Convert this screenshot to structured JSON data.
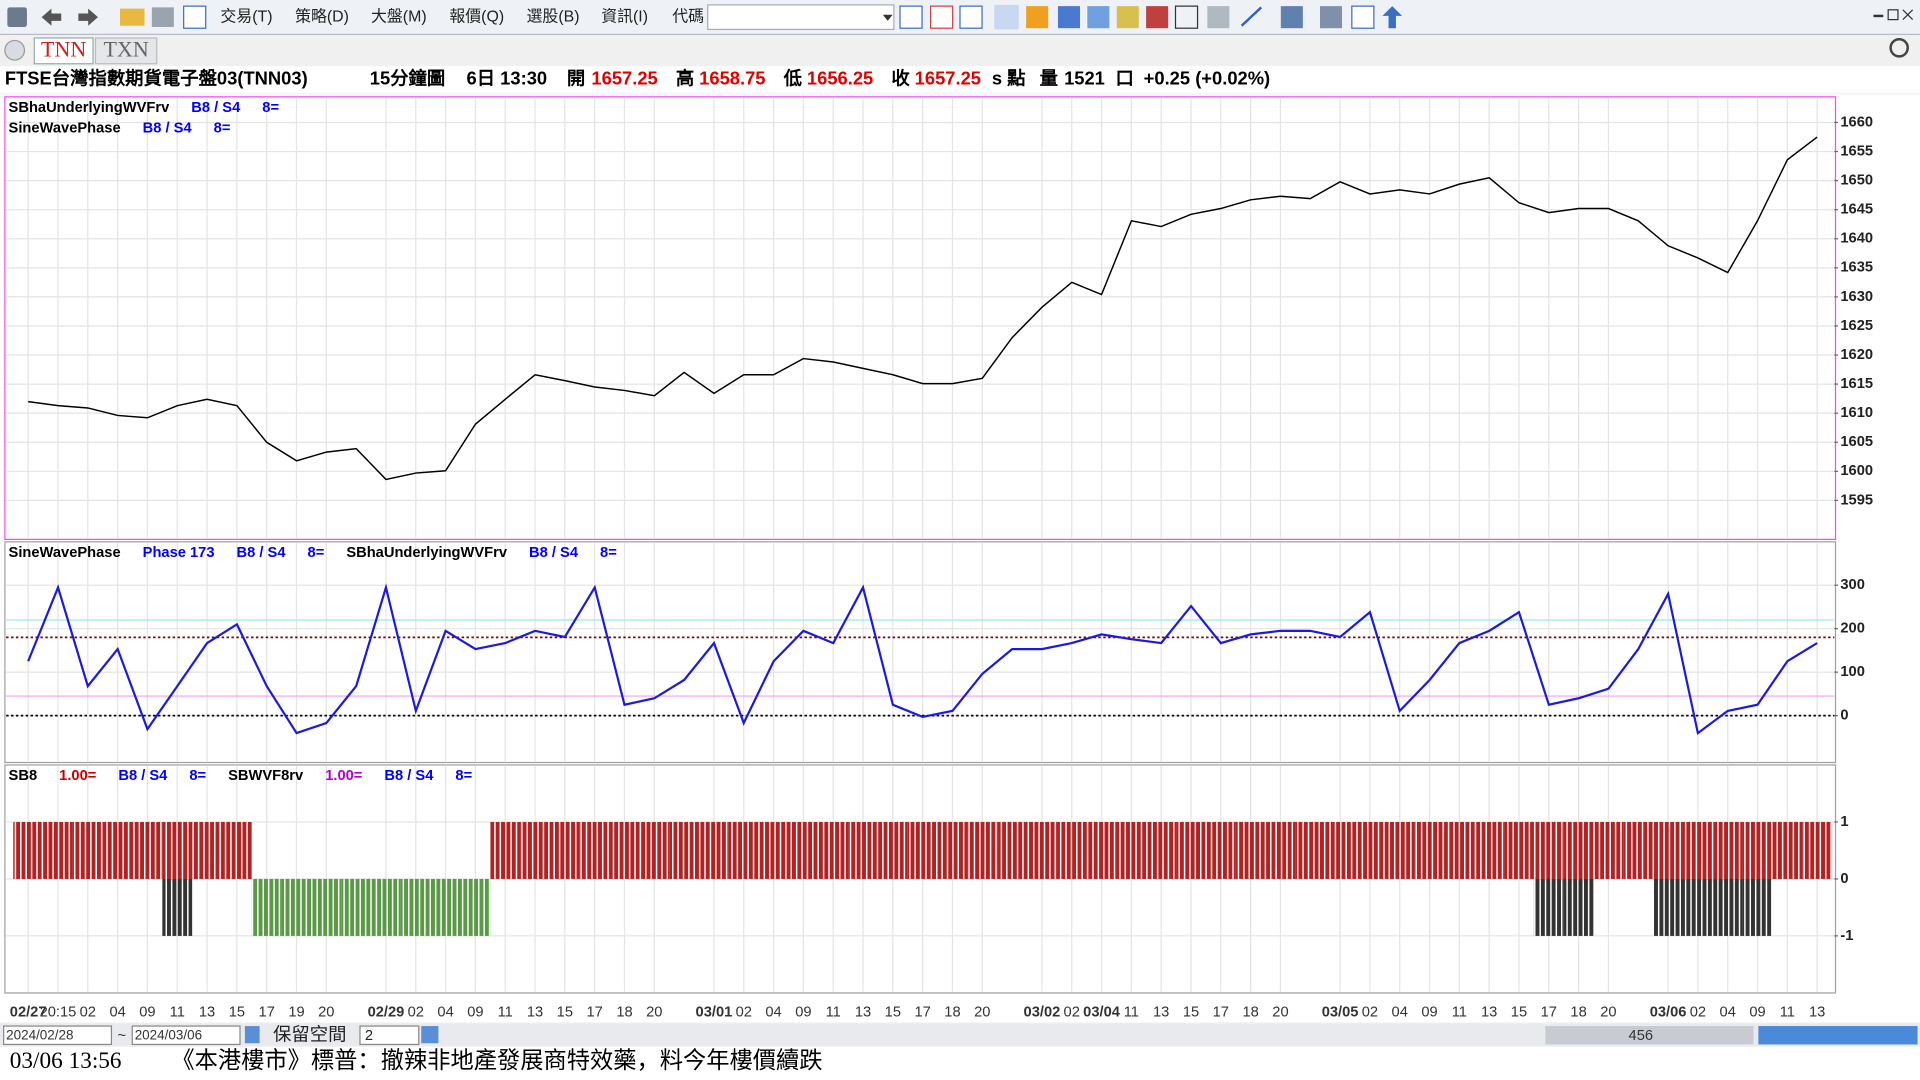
{
  "toolbar": {
    "menus": [
      "交易(T)",
      "策略(D)",
      "大盤(M)",
      "報價(Q)",
      "選股(B)",
      "資訊(I)",
      "代碼"
    ]
  },
  "tabs": [
    "TNN",
    "TXN"
  ],
  "quote": {
    "symbol": "FTSE台灣指數期貨電子盤03(TNN03)",
    "period": "15分鐘圖",
    "time": "6日 13:30",
    "open_label": "開",
    "open": "1657.25",
    "high_label": "高",
    "high": "1658.75",
    "low_label": "低",
    "low": "1656.25",
    "close_label": "收",
    "close": "1657.25",
    "unit": "s 點",
    "volume_label": "量",
    "volume": "1521",
    "volume_unit": "口",
    "change": "+0.25 (+0.02%)"
  },
  "chart_data": [
    {
      "type": "line",
      "header": [
        [
          {
            "text": "SBhaUnderlyingWVFrv",
            "color": "#000000"
          },
          {
            "text": "B8 / S4",
            "color": "#0000ff"
          },
          {
            "text": "8=",
            "color": "#0000ff"
          }
        ],
        [
          {
            "text": "SineWavePhase",
            "color": "#000000"
          },
          {
            "text": "B8 / S4",
            "color": "#0000ff"
          },
          {
            "text": "8=",
            "color": "#0000ff"
          }
        ]
      ],
      "categories": [
        "02/27",
        "20:15",
        "02",
        "04",
        "09",
        "11",
        "13",
        "15",
        "17",
        "19",
        "20",
        null,
        "02/29",
        "02",
        "04",
        "09",
        "11",
        "13",
        "15",
        "17",
        "18",
        "20",
        null,
        "03/01",
        "02",
        "04",
        "09",
        "11",
        "13",
        "15",
        "17",
        "18",
        "20",
        null,
        "03/02",
        "02",
        "03/04",
        "11",
        "13",
        "15",
        "17",
        "18",
        "20",
        null,
        "03/05",
        "02",
        "04",
        "09",
        "11",
        "13",
        "15",
        "17",
        "18",
        "20",
        null,
        "03/06",
        "02",
        "04",
        "09",
        "11",
        "13"
      ],
      "series": [
        {
          "color": "#000000",
          "values": [
            1612.0,
            1611.3,
            1610.9,
            1609.6,
            1609.2,
            1611.3,
            1612.4,
            1611.3,
            1605.0,
            1601.8,
            1603.3,
            1603.9,
            1598.6,
            1599.7,
            1600.1,
            1608.1,
            1612.4,
            1616.6,
            1615.6,
            1614.5,
            1613.9,
            1613.0,
            1617.0,
            1613.4,
            1616.6,
            1616.6,
            1619.4,
            1618.8,
            1617.7,
            1616.6,
            1615.1,
            1615.1,
            1616.0,
            1623.0,
            1628.2,
            1632.5,
            1630.4,
            1643.1,
            1642.1,
            1644.2,
            1645.2,
            1646.7,
            1647.3,
            1646.9,
            1649.8,
            1647.7,
            1648.4,
            1647.7,
            1649.4,
            1650.5,
            1646.2,
            1644.5,
            1645.2,
            1645.2,
            1643.1,
            1638.8,
            1636.7,
            1634.2,
            1643.1,
            1653.6,
            1657.5
          ]
        }
      ],
      "ylim": [
        1588.5,
        1664.2
      ],
      "yticks": [
        1595,
        1600,
        1605,
        1610,
        1615,
        1620,
        1625,
        1630,
        1635,
        1640,
        1645,
        1650,
        1655,
        1660
      ],
      "grid": true
    },
    {
      "type": "line",
      "header": [
        [
          {
            "text": "SineWavePhase",
            "color": "#000000"
          },
          {
            "text": "Phase 173",
            "color": "#0000ff"
          },
          {
            "text": "B8 / S4",
            "color": "#0000ff"
          },
          {
            "text": "8=",
            "color": "#0000ff"
          },
          {
            "text": "SBhaUnderlyingWVFrv",
            "color": "#000000"
          },
          {
            "text": "B8 / S4",
            "color": "#0000ff"
          },
          {
            "text": "8=",
            "color": "#0000ff"
          }
        ]
      ],
      "categories": [
        "02/27",
        "20:15",
        "02",
        "04",
        "09",
        "11",
        "13",
        "15",
        "17",
        "19",
        "20",
        null,
        "02/29",
        "02",
        "04",
        "09",
        "11",
        "13",
        "15",
        "17",
        "18",
        "20",
        null,
        "03/01",
        "02",
        "04",
        "09",
        "11",
        "13",
        "15",
        "17",
        "18",
        "20",
        null,
        "03/02",
        "02",
        "03/04",
        "11",
        "13",
        "15",
        "17",
        "18",
        "20",
        null,
        "03/05",
        "02",
        "04",
        "09",
        "11",
        "13",
        "15",
        "17",
        "18",
        "20",
        null,
        "03/06",
        "02",
        "04",
        "09",
        "11",
        "13"
      ],
      "series": [
        {
          "color": "#1a1ae0",
          "values": [
            125,
            295,
            68,
            153,
            -31,
            68,
            167,
            210,
            68,
            -40,
            -17,
            68,
            295,
            11,
            195,
            153,
            167,
            195,
            181,
            295,
            25,
            40,
            82,
            167,
            -17,
            125,
            195,
            167,
            295,
            25,
            -3,
            11,
            96,
            153,
            153,
            167,
            187,
            176,
            167,
            252,
            167,
            187,
            195,
            195,
            181,
            238,
            11,
            82,
            167,
            195,
            238,
            25,
            40,
            62,
            153,
            280,
            -40,
            11,
            25,
            125,
            167
          ]
        }
      ],
      "reference_lines": [
        {
          "value": 220,
          "color": "#9fe8e8",
          "dashed": false
        },
        {
          "value": 180,
          "color": "#800000",
          "dashed": true
        },
        {
          "value": 45,
          "color": "#f0a0f0",
          "dashed": false
        },
        {
          "value": 0,
          "color": "#000000",
          "dashed": true
        }
      ],
      "ylim": [
        -105,
        397
      ],
      "yticks": [
        0,
        100,
        200,
        300
      ],
      "grid": true
    },
    {
      "type": "bar",
      "header": [
        [
          {
            "text": "SB8",
            "color": "#000000"
          },
          {
            "text": "1.00=",
            "color": "#d00000"
          },
          {
            "text": "B8 / S4",
            "color": "#0000ff"
          },
          {
            "text": "8=",
            "color": "#0000ff"
          },
          {
            "text": "SBWVF8rv",
            "color": "#000000"
          },
          {
            "text": "1.00=",
            "color": "#b000d0"
          },
          {
            "text": "B8 / S4",
            "color": "#0000ff"
          },
          {
            "text": "8=",
            "color": "#0000ff"
          }
        ]
      ],
      "categories": [
        "02/27",
        "20:15",
        "02",
        "04",
        "09",
        "11",
        "13",
        "15",
        "17",
        "19",
        "20",
        null,
        "02/29",
        "02",
        "04",
        "09",
        "11",
        "13",
        "15",
        "17",
        "18",
        "20",
        null,
        "03/01",
        "02",
        "04",
        "09",
        "11",
        "13",
        "15",
        "17",
        "18",
        "20",
        null,
        "03/02",
        "02",
        "03/04",
        "11",
        "13",
        "15",
        "17",
        "18",
        "20",
        null,
        "03/05",
        "02",
        "04",
        "09",
        "11",
        "13",
        "15",
        "17",
        "18",
        "20",
        null,
        "03/06",
        "02",
        "04",
        "09",
        "11",
        "13"
      ],
      "series": [
        {
          "positive_color": "#b22222",
          "negative_color": "#5a9a46",
          "values": [
            1,
            1,
            1,
            1,
            1,
            1,
            1,
            1,
            -1,
            -1,
            -1,
            -1,
            -1,
            -1,
            -1,
            -1,
            1,
            1,
            1,
            1,
            1,
            1,
            1,
            1,
            1,
            1,
            1,
            1,
            1,
            1,
            1,
            1,
            1,
            1,
            1,
            1,
            1,
            1,
            1,
            1,
            1,
            1,
            1,
            1,
            1,
            1,
            1,
            1,
            1,
            1,
            1,
            1,
            1,
            1,
            1,
            1,
            1,
            1,
            1,
            1,
            1
          ]
        },
        {
          "color": "#333333",
          "values": [
            null,
            null,
            null,
            null,
            null,
            -1,
            null,
            null,
            null,
            null,
            null,
            null,
            null,
            null,
            null,
            null,
            null,
            null,
            null,
            null,
            null,
            null,
            null,
            null,
            null,
            null,
            null,
            null,
            null,
            null,
            null,
            null,
            null,
            null,
            null,
            null,
            null,
            null,
            null,
            null,
            null,
            null,
            null,
            null,
            null,
            null,
            null,
            null,
            null,
            null,
            null,
            -1,
            -1,
            null,
            null,
            -1,
            -1,
            -1,
            -1,
            null,
            null
          ]
        }
      ],
      "ylim": [
        -1.98,
        1.98
      ],
      "yticks": [
        1,
        0,
        -1
      ],
      "grid": true
    }
  ],
  "footer": {
    "date_from": "2024/02/28",
    "separator": "~",
    "date_to": "2024/03/06",
    "reserve_label": "保留空間",
    "reserve_value": "2",
    "scroll_value": "456"
  },
  "news": {
    "time": "03/06 13:56",
    "headline": "《本港樓市》標普：撤辣非地產發展商特效藥，料今年樓價續跌"
  }
}
